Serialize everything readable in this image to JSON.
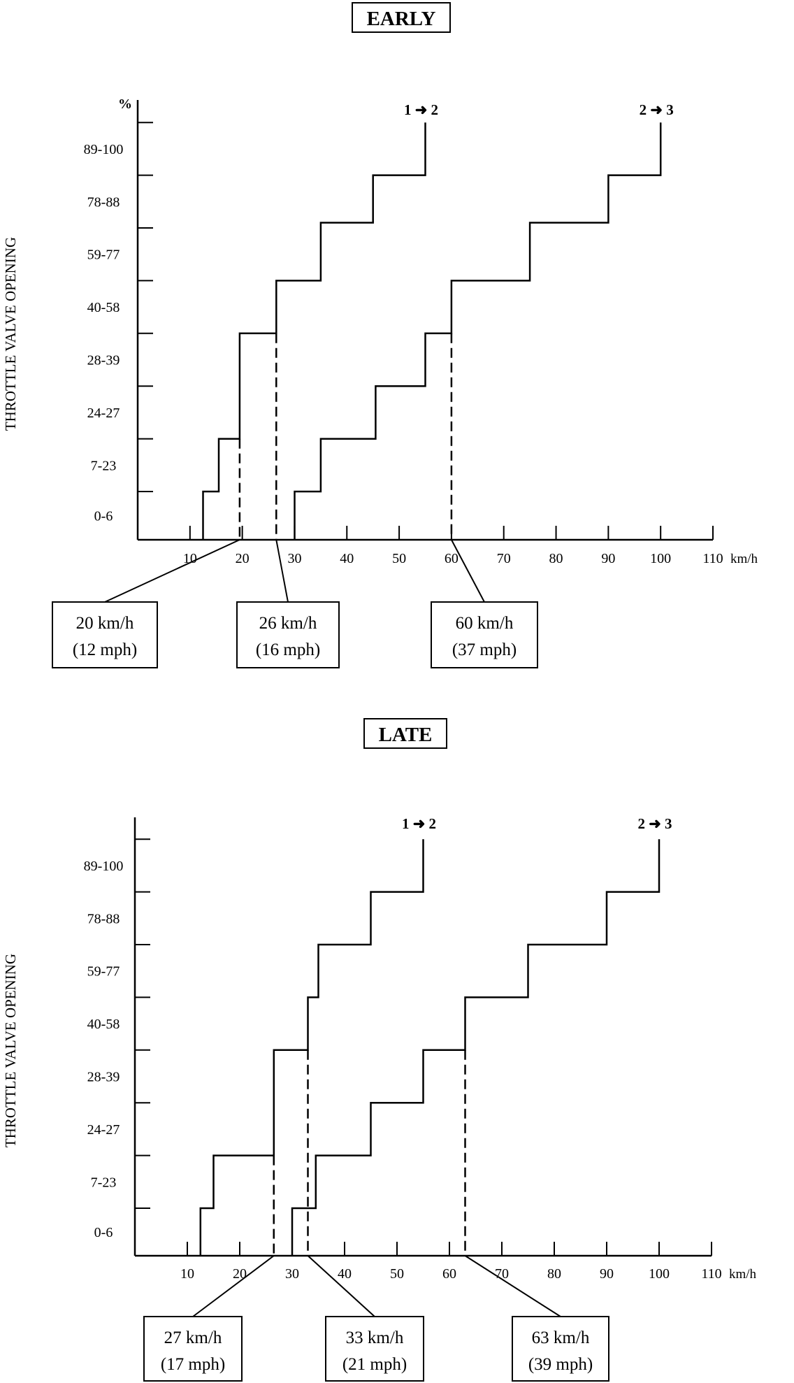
{
  "chart_data": [
    {
      "type": "line",
      "title": "EARLY",
      "ylabel": "THROTTLE VALVE OPENING",
      "y_unit": "%",
      "x_unit": "km/h",
      "y_categories": [
        "0-6",
        "7-23",
        "24-27",
        "28-39",
        "40-58",
        "59-77",
        "78-88",
        "89-100"
      ],
      "x_ticks": [
        10,
        20,
        30,
        40,
        50,
        60,
        70,
        80,
        90,
        100,
        110
      ],
      "xlim": [
        0,
        110
      ],
      "grid": false,
      "series": [
        {
          "name": "1 ➜ 2",
          "x": [
            12.5,
            12.5,
            15.5,
            15.5,
            19.5,
            19.5,
            26.5,
            26.5,
            35,
            35,
            45,
            45,
            55,
            55
          ],
          "y": [
            0,
            1,
            1,
            2,
            2,
            4,
            4,
            5,
            5,
            6.1,
            6.1,
            7,
            7,
            8
          ]
        },
        {
          "name": "2 ➜ 3",
          "x": [
            30,
            30,
            35,
            35,
            45.5,
            45.5,
            55,
            55,
            60,
            60,
            75,
            75,
            90,
            90,
            100,
            100
          ],
          "y": [
            0,
            1,
            1,
            2,
            2,
            3,
            3,
            4,
            4,
            5,
            5,
            6.1,
            6.1,
            7,
            7,
            8
          ]
        }
      ],
      "markers": [
        {
          "speed": "20 km/h",
          "mph": "(12 mph)",
          "x": 19.5
        },
        {
          "speed": "26 km/h",
          "mph": "(16 mph)",
          "x": 26.5
        },
        {
          "speed": "60 km/h",
          "mph": "(37 mph)",
          "x": 60
        }
      ]
    },
    {
      "type": "line",
      "title": "LATE",
      "ylabel": "THROTTLE VALVE OPENING",
      "y_unit": "",
      "x_unit": "km/h",
      "y_categories": [
        "0-6",
        "7-23",
        "24-27",
        "28-39",
        "40-58",
        "59-77",
        "78-88",
        "89-100"
      ],
      "x_ticks": [
        10,
        20,
        30,
        40,
        50,
        60,
        70,
        80,
        90,
        100,
        110
      ],
      "xlim": [
        0,
        110
      ],
      "grid": false,
      "series": [
        {
          "name": "1 ➜ 2",
          "x": [
            12.5,
            12.5,
            15,
            15,
            26.5,
            26.5,
            33,
            33,
            35,
            35,
            45,
            45,
            55,
            55
          ],
          "y": [
            0,
            1,
            1,
            2,
            2,
            4,
            4,
            5,
            5,
            6,
            6,
            7,
            7,
            8
          ]
        },
        {
          "name": "2 ➜ 3",
          "x": [
            30,
            30,
            34.5,
            34.5,
            45,
            45,
            55,
            55,
            63,
            63,
            75,
            75,
            90,
            90,
            100,
            100
          ],
          "y": [
            0,
            1,
            1,
            2,
            2,
            3,
            3,
            4,
            4,
            5,
            5,
            6,
            6,
            7,
            7,
            8
          ]
        }
      ],
      "markers": [
        {
          "speed": "27 km/h",
          "mph": "(17 mph)",
          "x": 26.5
        },
        {
          "speed": "33 km/h",
          "mph": "(21 mph)",
          "x": 33
        },
        {
          "speed": "63 km/h",
          "mph": "(39 mph)",
          "x": 63
        }
      ]
    }
  ]
}
